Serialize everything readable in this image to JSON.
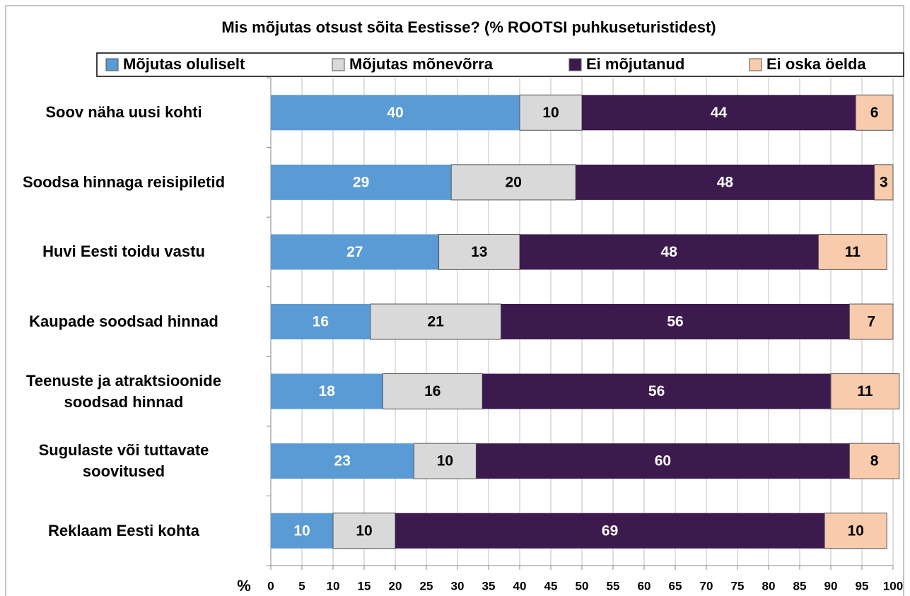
{
  "chart_data": {
    "type": "stacked_barh",
    "title": "Mis mõjutas otsust sõita Eestisse? (% ROOTSI puhkuseturistidest)",
    "xlabel": "%",
    "categories": [
      "Soov näha uusi kohti",
      "Soodsa hinnaga reisipiletid",
      "Huvi Eesti toidu vastu",
      "Kaupade soodsad hinnad",
      "Teenuste ja atraktsioonide\nsoodsad hinnad",
      "Sugulaste või tuttavate\nsoovitused",
      "Reklaam Eesti kohta"
    ],
    "series": [
      {
        "name": "Mõjutas oluliselt",
        "color": "#5b9bd5",
        "label_color": "#ffffff",
        "values": [
          40,
          29,
          27,
          16,
          18,
          23,
          10
        ]
      },
      {
        "name": "Mõjutas mõnevõrra",
        "color": "#d9d9d9",
        "label_color": "#000000",
        "values": [
          10,
          20,
          13,
          21,
          16,
          10,
          10
        ]
      },
      {
        "name": "Ei mõjutanud",
        "color": "#3c1a4e",
        "label_color": "#ffffff",
        "values": [
          44,
          48,
          48,
          56,
          56,
          60,
          69
        ]
      },
      {
        "name": "Ei oska öelda",
        "color": "#f8cbad",
        "label_color": "#000000",
        "values": [
          6,
          3,
          11,
          7,
          11,
          8,
          10
        ]
      }
    ],
    "xlim": [
      0,
      100
    ],
    "xticks": [
      0,
      5,
      10,
      15,
      20,
      25,
      30,
      35,
      40,
      45,
      50,
      55,
      60,
      65,
      70,
      75,
      80,
      85,
      90,
      95,
      100
    ],
    "grid": true
  }
}
